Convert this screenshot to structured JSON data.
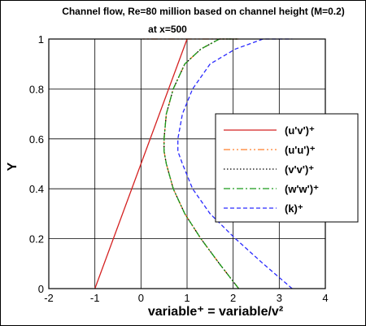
{
  "chart_data": {
    "type": "line",
    "title": "Channel flow, Re=80 million based on channel height (M=0.2)",
    "subtitle": "at x=500",
    "xlabel": "variable⁺ = variable/v²",
    "ylabel": "Y",
    "xlim": [
      -2,
      4
    ],
    "ylim": [
      0,
      1
    ],
    "xticks": [
      "-2",
      "-1",
      "0",
      "1",
      "2",
      "3",
      "4"
    ],
    "yticks": [
      "0",
      "0.2",
      "0.4",
      "0.6",
      "0.8",
      "1"
    ],
    "grid": true,
    "legend_position": "center-right",
    "series": [
      {
        "name": "(u'v')⁺",
        "color": "#d42020",
        "style": "solid",
        "x": [
          -1.0,
          1.0
        ],
        "y": [
          0.0,
          1.0
        ]
      },
      {
        "name": "(u'u')⁺",
        "color": "#ff7f2a",
        "style": "dashdotdot",
        "x": [
          2.12,
          1.7,
          1.3,
          0.95,
          0.7,
          0.55,
          0.5,
          0.5,
          0.55,
          0.7,
          0.95,
          1.3,
          1.7,
          2.12,
          0.0
        ],
        "y": [
          0.0,
          0.1,
          0.2,
          0.3,
          0.4,
          0.5,
          0.55,
          0.6,
          0.7,
          0.8,
          0.9,
          0.96,
          1.0,
          1.0,
          1.0
        ]
      },
      {
        "name": "(v'v')⁺",
        "color": "#000000",
        "style": "dotted",
        "x": [
          2.12,
          1.7,
          1.3,
          0.95,
          0.7,
          0.55,
          0.5,
          0.5,
          0.55,
          0.7,
          0.95,
          1.3,
          1.7,
          2.12
        ],
        "y": [
          0.0,
          0.1,
          0.2,
          0.3,
          0.4,
          0.5,
          0.55,
          0.6,
          0.7,
          0.8,
          0.9,
          0.96,
          1.0,
          1.0
        ]
      },
      {
        "name": "(w'w')⁺",
        "color": "#1a9a1a",
        "style": "dashdot",
        "x": [
          2.12,
          1.7,
          1.3,
          0.95,
          0.7,
          0.55,
          0.5,
          0.5,
          0.55,
          0.7,
          0.95,
          1.3,
          1.7,
          2.12
        ],
        "y": [
          0.0,
          0.1,
          0.2,
          0.3,
          0.4,
          0.5,
          0.55,
          0.6,
          0.7,
          0.8,
          0.9,
          0.96,
          1.0,
          1.0
        ]
      },
      {
        "name": "(k)⁺",
        "color": "#2a2aff",
        "style": "dashed",
        "x": [
          3.28,
          2.65,
          2.05,
          1.5,
          1.12,
          0.9,
          0.8,
          0.8,
          0.9,
          1.12,
          1.5,
          2.05,
          2.65,
          3.28,
          3.28
        ],
        "y": [
          0.0,
          0.1,
          0.2,
          0.3,
          0.4,
          0.5,
          0.55,
          0.6,
          0.7,
          0.8,
          0.9,
          0.96,
          1.0,
          1.0,
          1.0
        ]
      }
    ]
  }
}
